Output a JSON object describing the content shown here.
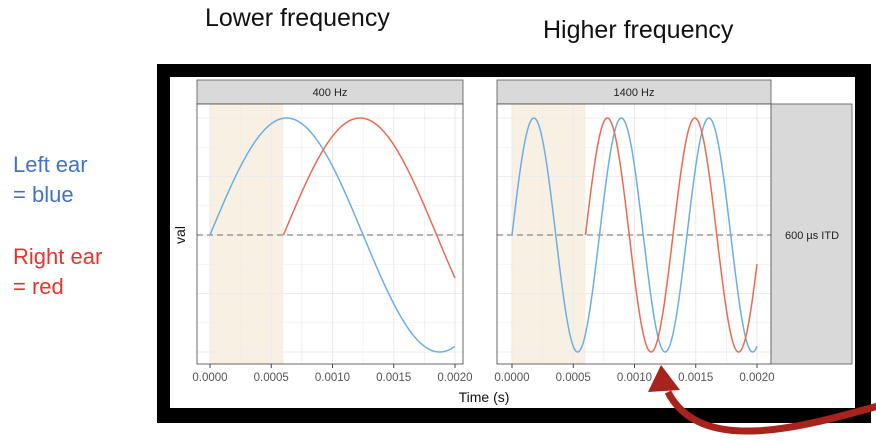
{
  "slide": {
    "title_left": "Lower frequency",
    "title_right": "Higher frequency",
    "legend": {
      "left_line1": "Left ear",
      "left_line2": "= blue",
      "right_line1": "Right ear",
      "right_line2": "= red",
      "left_color": "#4472c4",
      "right_color": "#e8342a"
    },
    "arrow_color": "#a8231b"
  },
  "chart_data": {
    "type": "line",
    "xlabel": "Time (s)",
    "ylabel": "val",
    "xlim": [
      0,
      0.002
    ],
    "ylim": [
      -1,
      1
    ],
    "x_ticks": [
      "0.0000",
      "0.0005",
      "0.0010",
      "0.0015",
      "0.0020"
    ],
    "x_tick_values": [
      0,
      0.0005,
      0.001,
      0.0015,
      0.002
    ],
    "grid": true,
    "facet_row_label": "600 µs ITD",
    "itd_s": 0.0006,
    "shaded_interval": [
      0,
      0.0006
    ],
    "shade_color": "#f8f1e3",
    "reference_line": {
      "y": 0,
      "style": "dashed"
    },
    "panels": [
      {
        "label": "400 Hz",
        "frequency_hz": 400
      },
      {
        "label": "1400 Hz",
        "frequency_hz": 1400
      }
    ],
    "series": [
      {
        "name": "Left ear",
        "color": "#6aaee8",
        "function": "sin(2*pi*f*t)",
        "start_s": 0
      },
      {
        "name": "Right ear",
        "color": "#ec6a50",
        "function": "sin(2*pi*f*(t-0.0006))",
        "start_s": 0.0006
      }
    ]
  }
}
